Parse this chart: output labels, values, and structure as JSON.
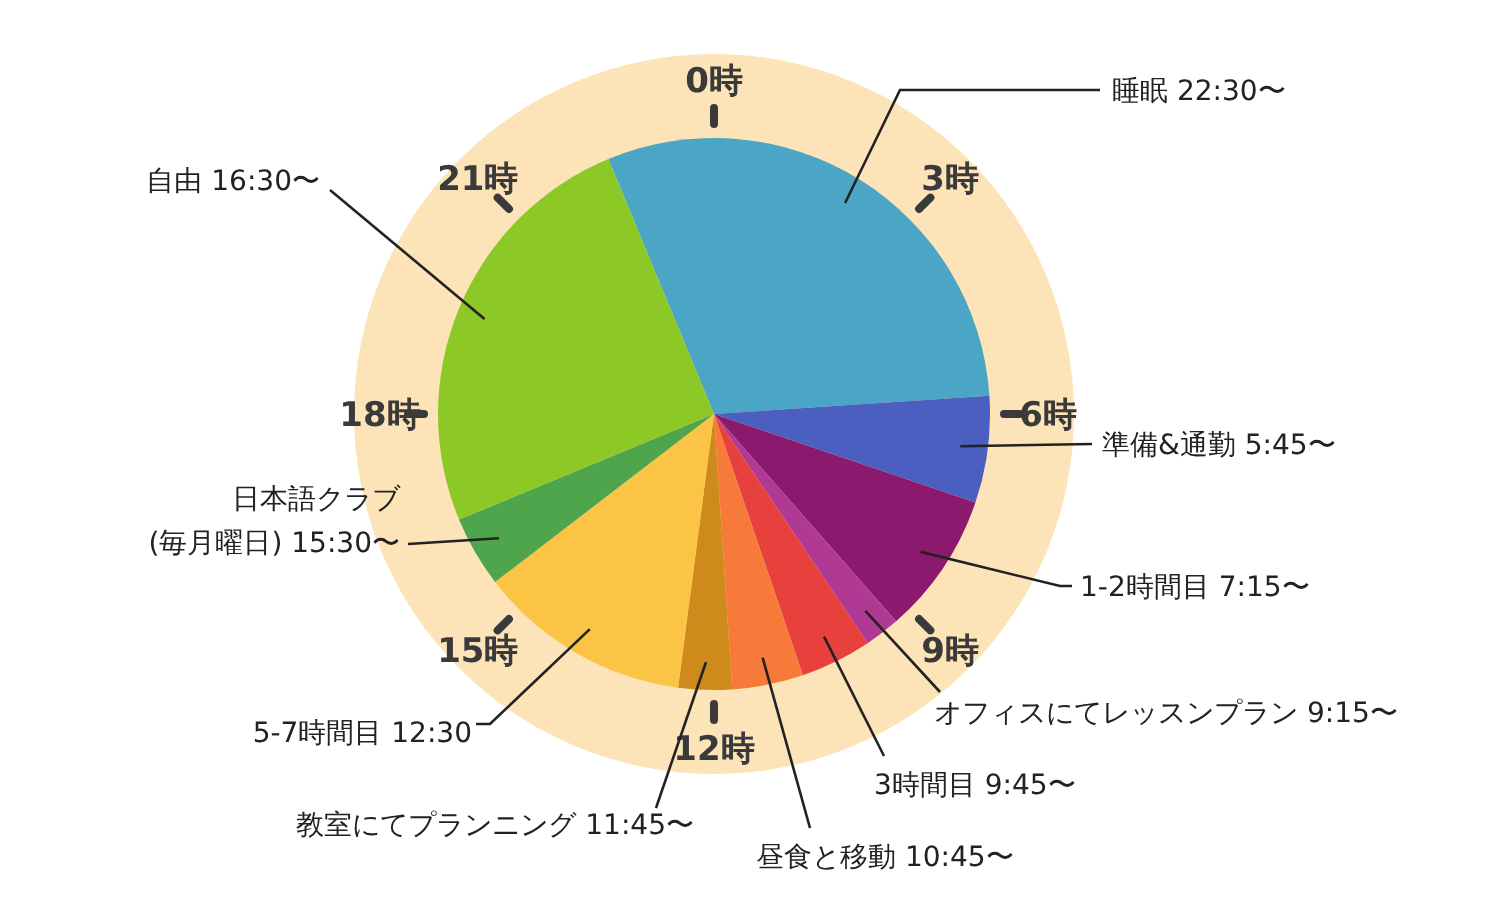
{
  "chart_data": {
    "type": "pie",
    "categories": [
      "睡眠 22:30〜",
      "準備&通勤 5:45〜",
      "1-2時間目 7:15〜",
      "オフィスにてレッスンプラン 9:15〜",
      "3時間目 9:45〜",
      "昼食と移動 10:45〜",
      "教室にてプランニング 11:45〜",
      "5-7時間目 12:30",
      "日本語クラブ\n(毎月曜日) 15:30〜",
      "自由 16:30〜"
    ],
    "values": [
      30.2,
      6.25,
      8.33,
      2.08,
      4.17,
      4.17,
      3.13,
      12.5,
      4.17,
      25
    ],
    "colors": [
      "#4aa6c4",
      "#4b5fc0",
      "#8b1a6e",
      "#b03a93",
      "#e8403c",
      "#f77a3a",
      "#cf8a1c",
      "#fcc445",
      "#4ea54c",
      "#8cc826"
    ],
    "annotations": [
      "0時",
      "3時",
      "6時",
      "9時",
      "12時",
      "15時",
      "18時",
      "21時"
    ]
  }
}
